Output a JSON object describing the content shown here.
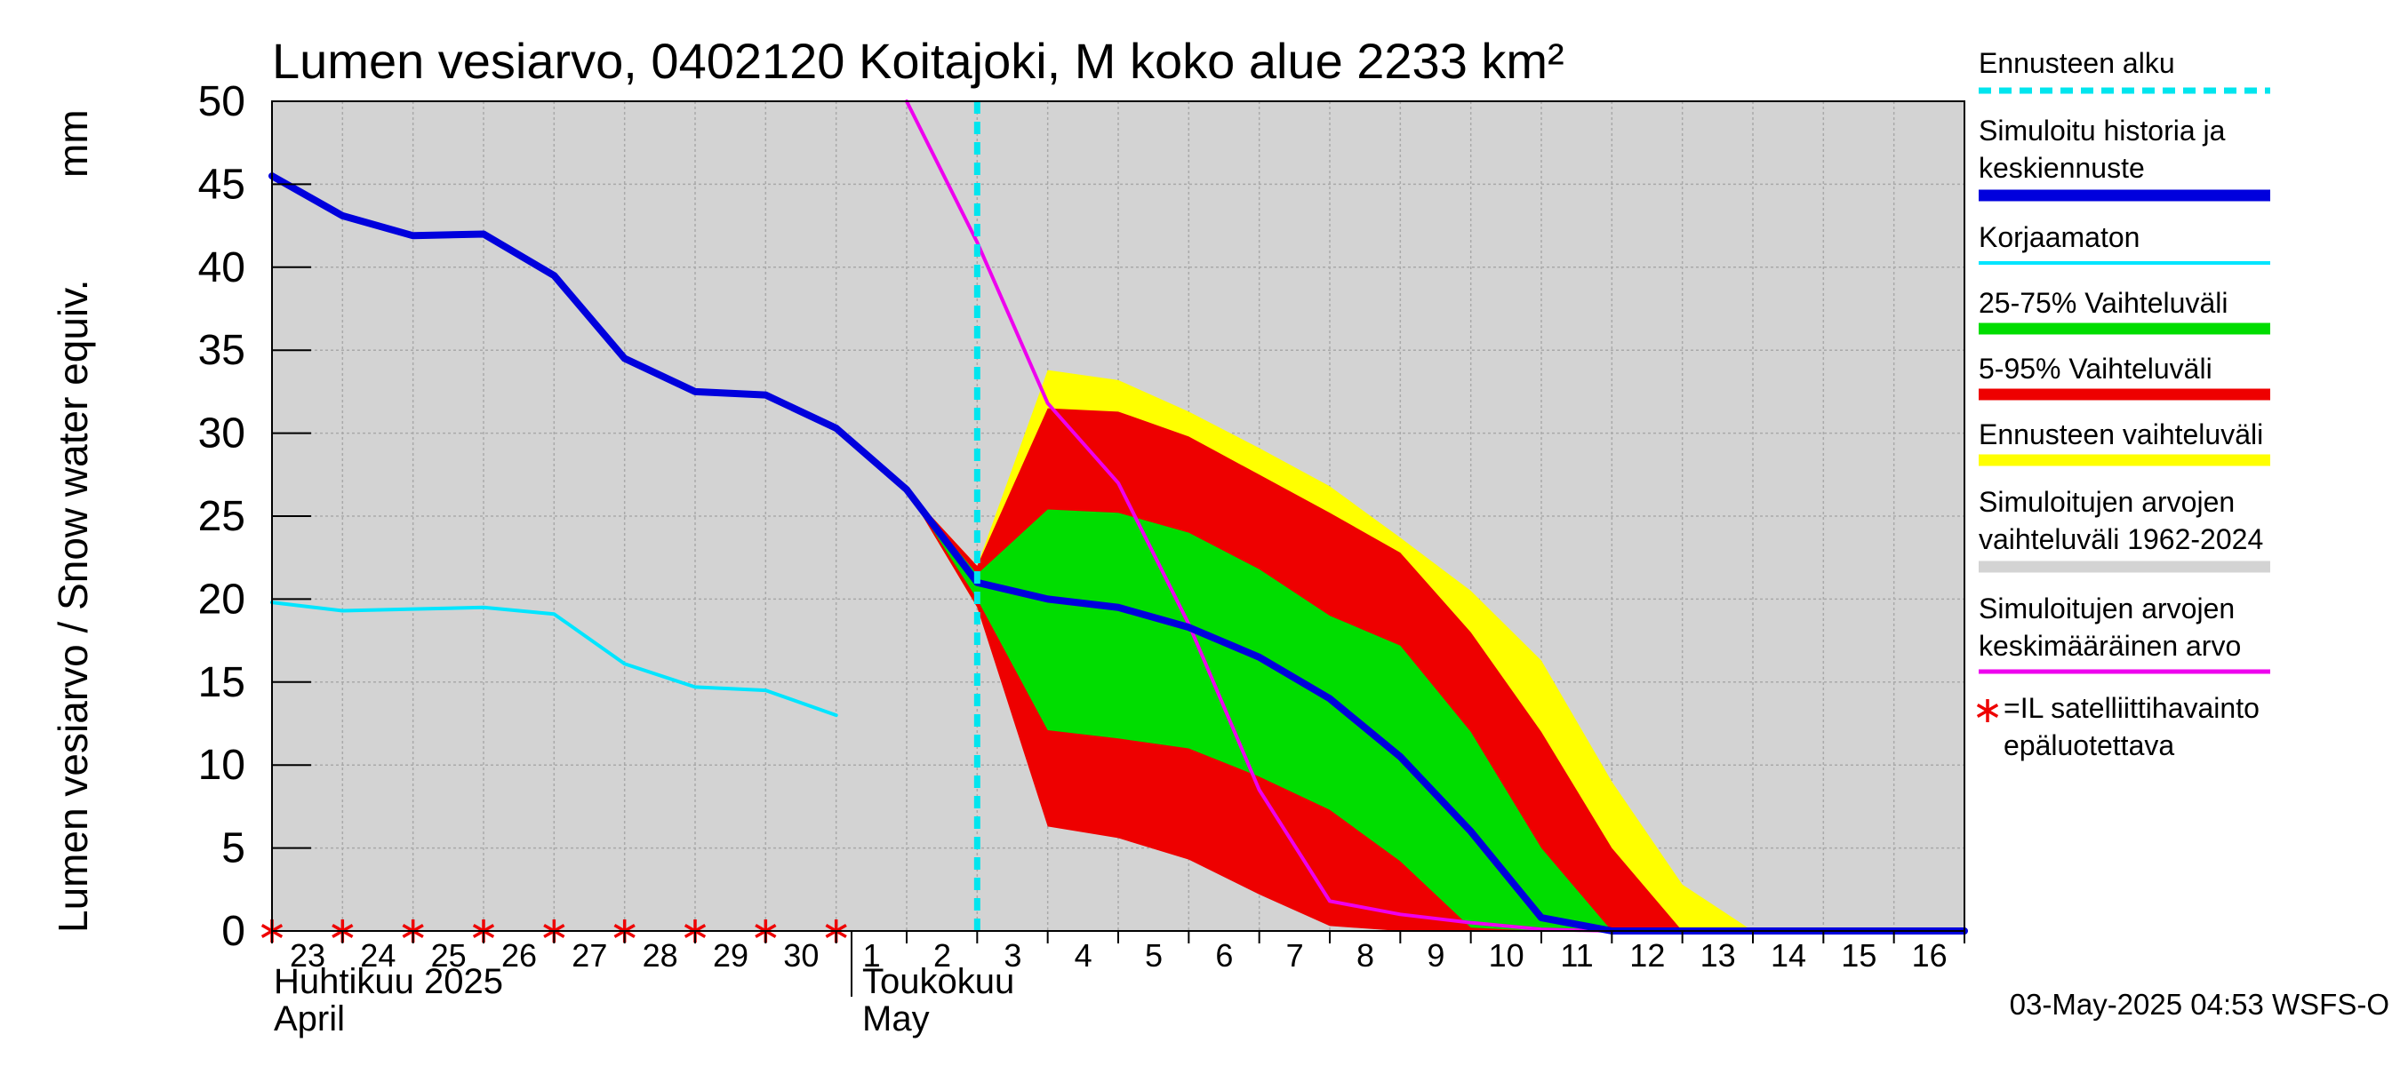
{
  "colors": {
    "background": "#d3d3d3",
    "grid": "#a9a9a9",
    "forecast_start": "#00e5ee",
    "history": "#0000dd",
    "uncorrected": "#00e5ff",
    "p25_75": "#00dd00",
    "p5_95": "#ee0000",
    "forecast_range": "#ffff00",
    "sim_range": "#d3d3d3",
    "sim_mean": "#ee00ee",
    "satellite": "#ee0000"
  },
  "chart_data": {
    "type": "area",
    "title": "Lumen vesiarvo, 0402120 Koitajoki, M koko alue 2233 km²",
    "ylabel": "Lumen vesiarvo / Snow water equiv.",
    "yunit": "mm",
    "ylim": [
      0,
      50
    ],
    "yticks": [
      "0",
      "5",
      "10",
      "15",
      "20",
      "25",
      "30",
      "35",
      "40",
      "45",
      "50"
    ],
    "xlim": [
      0,
      24
    ],
    "xtick_labels": [
      "23",
      "24",
      "25",
      "26",
      "27",
      "28",
      "29",
      "30",
      "1",
      "2",
      "3",
      "4",
      "5",
      "6",
      "7",
      "8",
      "9",
      "10",
      "11",
      "12",
      "13",
      "14",
      "15",
      "16"
    ],
    "month_labels": [
      {
        "x": 0,
        "fi": "Huhtikuu  2025",
        "en": "April"
      },
      {
        "x": 9,
        "fi": "Toukokuu",
        "en": "May"
      }
    ],
    "grid": true,
    "legend_position": "right",
    "forecast_start_x": 10.0,
    "series": {
      "history": {
        "name": "Simuloitu historia ja keskiennuste",
        "x": [
          0,
          1,
          2,
          3,
          4,
          5,
          6,
          7,
          8,
          9,
          10,
          11,
          12,
          13,
          14,
          15,
          16,
          17,
          18,
          19,
          20,
          21,
          22,
          23,
          24
        ],
        "y": [
          45.5,
          43.1,
          41.9,
          42.0,
          39.5,
          34.5,
          32.5,
          32.3,
          30.3,
          26.6,
          21.0,
          20.0,
          19.5,
          18.3,
          16.5,
          14.0,
          10.5,
          6.0,
          0.8,
          0,
          0,
          0,
          0,
          0,
          0
        ]
      },
      "uncorrected": {
        "name": "Korjaamaton",
        "x": [
          0,
          1,
          2,
          3,
          4,
          5,
          6,
          7,
          8
        ],
        "y": [
          19.8,
          19.3,
          19.4,
          19.5,
          19.1,
          16.1,
          14.7,
          14.5,
          13.0
        ]
      },
      "forecast_range": {
        "name": "Ennusteen vaihteluväli",
        "x": [
          9,
          10,
          11,
          12,
          13,
          14,
          15,
          16,
          17,
          18,
          19,
          20,
          21
        ],
        "upper": [
          26.6,
          22.0,
          33.8,
          33.2,
          31.3,
          29.1,
          26.8,
          23.7,
          20.5,
          16.3,
          9.0,
          2.8,
          0
        ],
        "lower": [
          26.6,
          19.5,
          6.5,
          5.8,
          4.5,
          2.5,
          0.5,
          0,
          0,
          0,
          0,
          0,
          0
        ]
      },
      "p5_95": {
        "name": "5-95% Vaihteluväli",
        "x": [
          9,
          10,
          11,
          12,
          13,
          14,
          15,
          16,
          17,
          18,
          19,
          20
        ],
        "upper": [
          26.6,
          22.0,
          31.5,
          31.3,
          29.8,
          27.5,
          25.2,
          22.8,
          18.0,
          12.0,
          5.0,
          0
        ],
        "lower": [
          26.6,
          19.5,
          6.3,
          5.6,
          4.3,
          2.2,
          0.3,
          0,
          0,
          0,
          0,
          0
        ]
      },
      "p25_75": {
        "name": "25-75% Vaihteluväli",
        "x": [
          9,
          10,
          11,
          12,
          13,
          14,
          15,
          16,
          17,
          18,
          19
        ],
        "upper": [
          26.6,
          21.5,
          25.4,
          25.2,
          24.0,
          21.8,
          19.0,
          17.2,
          12.0,
          5.0,
          0
        ],
        "lower": [
          26.6,
          20.0,
          12.1,
          11.6,
          11.0,
          9.3,
          7.3,
          4.2,
          0.2,
          0,
          0
        ]
      },
      "sim_mean": {
        "name": "Simuloitujen arvojen keskimääräinen arvo",
        "x": [
          9.0,
          10.0,
          11.0,
          12.0,
          13.0,
          14.0,
          15.0,
          16.0,
          17.0,
          18.0,
          19.0,
          20.0,
          21.0,
          22.0,
          23.0,
          24.0
        ],
        "y": [
          50.0,
          41.5,
          31.8,
          27.0,
          18.5,
          8.5,
          1.8,
          1.0,
          0.5,
          0.1,
          0,
          0,
          0,
          0,
          0,
          0
        ]
      },
      "satellite": {
        "name": "=IL satelliittihavainto epäluotettava",
        "x": [
          0,
          1,
          2,
          3,
          4,
          5,
          6,
          7,
          8
        ],
        "y": [
          0,
          0,
          0,
          0,
          0,
          0,
          0,
          0,
          0
        ]
      }
    }
  },
  "legend": [
    {
      "label": "Ennusteen alku",
      "swatch": "dashed",
      "color": "#00e5ee"
    },
    {
      "label": "Simuloitu historia ja\nkeskiennuste",
      "swatch": "thick",
      "color": "#0000dd"
    },
    {
      "label": "Korjaamaton",
      "swatch": "thin",
      "color": "#00e5ff"
    },
    {
      "label": "25-75% Vaihteluväli",
      "swatch": "thick",
      "color": "#00dd00"
    },
    {
      "label": "5-95% Vaihteluväli",
      "swatch": "thick",
      "color": "#ee0000"
    },
    {
      "label": "Ennusteen vaihteluväli",
      "swatch": "thick",
      "color": "#ffff00"
    },
    {
      "label": "Simuloitujen arvojen\nvaihteluväli 1962-2024",
      "swatch": "thick",
      "color": "#d3d3d3"
    },
    {
      "label": "Simuloitujen arvojen\nkeskimääräinen arvo",
      "swatch": "medium",
      "color": "#ee00ee"
    },
    {
      "label": "=IL satelliittihavainto\nepäluotettava",
      "swatch": "star",
      "color": "#ee0000"
    }
  ],
  "footer": "03-May-2025 04:53 WSFS-O"
}
